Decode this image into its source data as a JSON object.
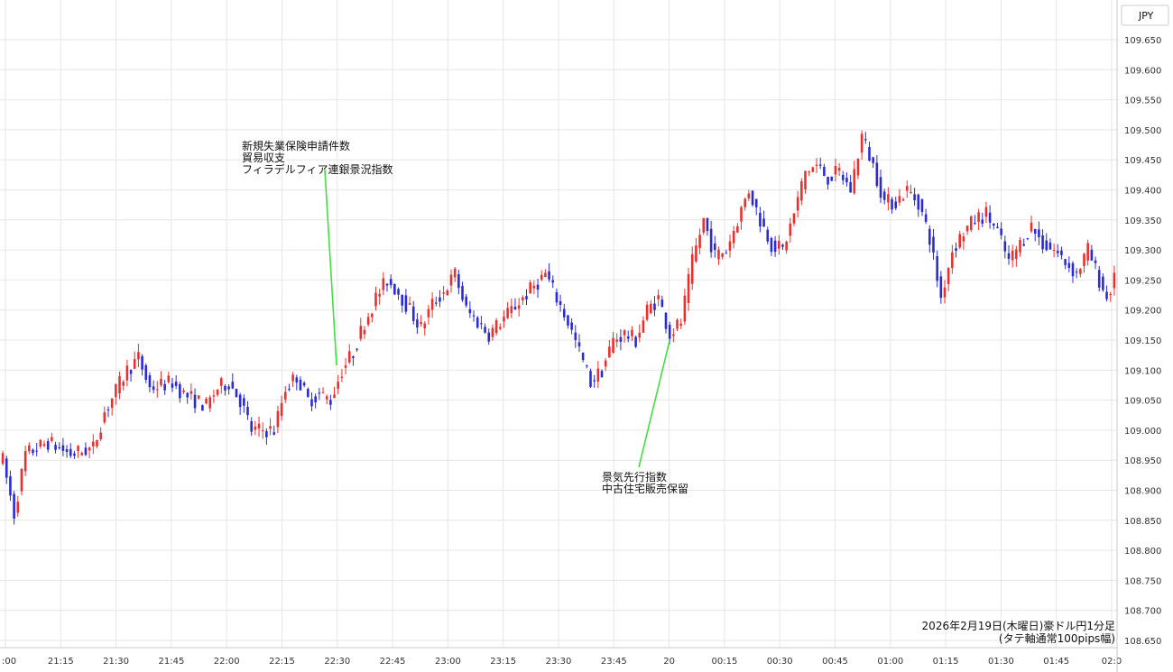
{
  "chart_data": {
    "type": "candlestick",
    "symbol": "JPY",
    "ylim": [
      108.65,
      109.65
    ],
    "yticks": [
      "109.650",
      "109.600",
      "109.550",
      "109.500",
      "109.450",
      "109.400",
      "109.350",
      "109.300",
      "109.250",
      "109.200",
      "109.150",
      "109.100",
      "109.050",
      "109.000",
      "108.950",
      "108.900",
      "108.850",
      "108.800",
      "108.750",
      "108.700",
      "108.650"
    ],
    "xticks": [
      ":00",
      "21:15",
      "21:30",
      "21:45",
      "22:00",
      "22:15",
      "22:30",
      "22:45",
      "23:00",
      "23:15",
      "23:30",
      "23:45",
      "20",
      "00:15",
      "00:30",
      "00:45",
      "01:00",
      "01:15",
      "01:30",
      "01:45",
      "02:0"
    ],
    "grid": true,
    "colors": {
      "up": "#e8312f",
      "down": "#2a2ad6",
      "annotation_line": "#44dd44",
      "grid": "#e6e6e6"
    },
    "waypoints": [
      [
        0,
        108.95
      ],
      [
        3,
        108.86
      ],
      [
        6,
        108.96
      ],
      [
        12,
        108.98
      ],
      [
        18,
        108.96
      ],
      [
        24,
        108.97
      ],
      [
        27,
        109.03
      ],
      [
        33,
        109.1
      ],
      [
        36,
        109.12
      ],
      [
        39,
        109.07
      ],
      [
        45,
        109.08
      ],
      [
        48,
        109.06
      ],
      [
        54,
        109.04
      ],
      [
        57,
        109.07
      ],
      [
        60,
        109.08
      ],
      [
        63,
        109.05
      ],
      [
        66,
        109.0
      ],
      [
        72,
        109.0
      ],
      [
        75,
        109.07
      ],
      [
        78,
        109.09
      ],
      [
        81,
        109.05
      ],
      [
        84,
        109.06
      ],
      [
        87,
        109.05
      ],
      [
        90,
        109.1
      ],
      [
        93,
        109.13
      ],
      [
        96,
        109.18
      ],
      [
        99,
        109.22
      ],
      [
        102,
        109.25
      ],
      [
        105,
        109.23
      ],
      [
        108,
        109.2
      ],
      [
        111,
        109.17
      ],
      [
        114,
        109.21
      ],
      [
        117,
        109.23
      ],
      [
        120,
        109.26
      ],
      [
        123,
        109.2
      ],
      [
        126,
        109.18
      ],
      [
        129,
        109.16
      ],
      [
        135,
        109.2
      ],
      [
        141,
        109.24
      ],
      [
        144,
        109.26
      ],
      [
        147,
        109.22
      ],
      [
        150,
        109.18
      ],
      [
        153,
        109.13
      ],
      [
        156,
        109.08
      ],
      [
        159,
        109.1
      ],
      [
        162,
        109.15
      ],
      [
        165,
        109.16
      ],
      [
        168,
        109.15
      ],
      [
        171,
        109.2
      ],
      [
        174,
        109.22
      ],
      [
        177,
        109.16
      ],
      [
        180,
        109.18
      ],
      [
        183,
        109.28
      ],
      [
        186,
        109.35
      ],
      [
        189,
        109.29
      ],
      [
        192,
        109.3
      ],
      [
        195,
        109.35
      ],
      [
        198,
        109.4
      ],
      [
        201,
        109.35
      ],
      [
        204,
        109.31
      ],
      [
        207,
        109.3
      ],
      [
        210,
        109.36
      ],
      [
        213,
        109.43
      ],
      [
        216,
        109.44
      ],
      [
        219,
        109.42
      ],
      [
        222,
        109.43
      ],
      [
        225,
        109.4
      ],
      [
        228,
        109.49
      ],
      [
        231,
        109.44
      ],
      [
        234,
        109.38
      ],
      [
        237,
        109.38
      ],
      [
        240,
        109.4
      ],
      [
        243,
        109.38
      ],
      [
        246,
        109.32
      ],
      [
        249,
        109.22
      ],
      [
        252,
        109.3
      ],
      [
        255,
        109.33
      ],
      [
        258,
        109.35
      ],
      [
        261,
        109.36
      ],
      [
        264,
        109.33
      ],
      [
        267,
        109.28
      ],
      [
        270,
        109.31
      ],
      [
        273,
        109.34
      ],
      [
        276,
        109.31
      ],
      [
        279,
        109.3
      ],
      [
        282,
        109.28
      ],
      [
        285,
        109.26
      ],
      [
        288,
        109.3
      ],
      [
        291,
        109.25
      ],
      [
        293,
        109.22
      ],
      [
        295,
        109.25
      ]
    ]
  },
  "annotations": [
    {
      "lines": [
        "新規失業保険申請件数",
        "貿易収支",
        "フィラデルフィア連銀景況指数"
      ]
    },
    {
      "lines": [
        "景気先行指数",
        "中古住宅販売保留"
      ]
    }
  ],
  "footer": {
    "line1": "2026年2月19日(木曜日)豪ドル円1分足",
    "line2": "(タテ軸通常100pips幅)"
  }
}
